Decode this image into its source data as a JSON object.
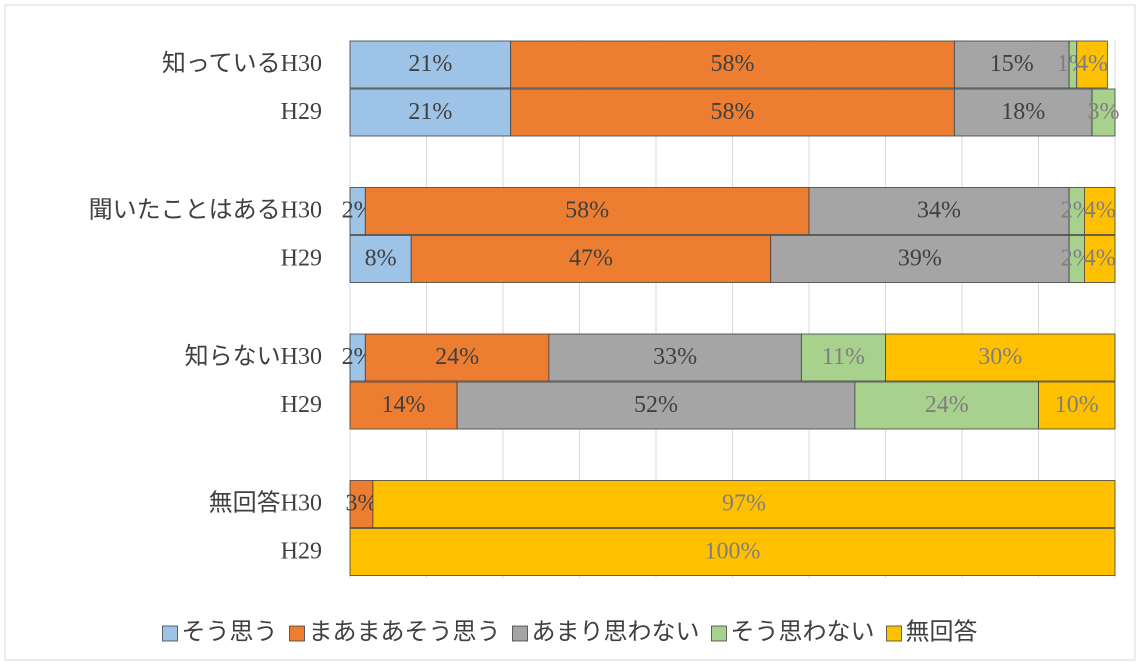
{
  "chart_data": {
    "type": "stacked-bar-horizontal",
    "categories": [
      "知っているH30",
      "H29",
      "聞いたことはあるH30",
      "H29",
      "知らないH30",
      "H29",
      "無回答H30",
      "H29"
    ],
    "series": [
      {
        "name": "そう思う",
        "color": "#9dc3e6",
        "label_color": "#404040",
        "values": [
          21,
          21,
          2,
          8,
          2,
          null,
          null,
          null
        ],
        "value_labels": [
          "21%",
          "21%",
          "2%",
          "8%",
          "2%",
          null,
          null,
          null
        ]
      },
      {
        "name": "まあまあそう思う",
        "color": "#ed7d31",
        "label_color": "#404040",
        "values": [
          58,
          58,
          58,
          47,
          24,
          14,
          3,
          null
        ],
        "value_labels": [
          "58%",
          "58%",
          "58%",
          "47%",
          "24%",
          "14%",
          "3%",
          null
        ]
      },
      {
        "name": "あまり思わない",
        "color": "#a5a5a5",
        "label_color": "#404040",
        "values": [
          15,
          18,
          34,
          39,
          33,
          52,
          null,
          null
        ],
        "value_labels": [
          "15%",
          "18%",
          "34%",
          "39%",
          "33%",
          "52%",
          null,
          null
        ]
      },
      {
        "name": "そう思わない",
        "color": "#a9d18e",
        "label_color": "#7f7f7f",
        "values": [
          1,
          3,
          2,
          2,
          11,
          24,
          null,
          null
        ],
        "value_labels": [
          "1%",
          "3%",
          "2%",
          "2%",
          "11%",
          "24%",
          null,
          null
        ]
      },
      {
        "name": "無回答",
        "color": "#ffc000",
        "label_color": "#7f7f7f",
        "values": [
          4,
          null,
          4,
          4,
          30,
          10,
          97,
          100
        ],
        "value_labels": [
          "4%",
          null,
          "4%",
          "4%",
          "30%",
          "10%",
          "97%",
          "100%"
        ]
      }
    ],
    "xlim": [
      0,
      100
    ],
    "xticks": [
      0,
      10,
      20,
      30,
      40,
      50,
      60,
      70,
      80,
      90,
      100
    ],
    "grid": true,
    "legend": "bottom"
  }
}
